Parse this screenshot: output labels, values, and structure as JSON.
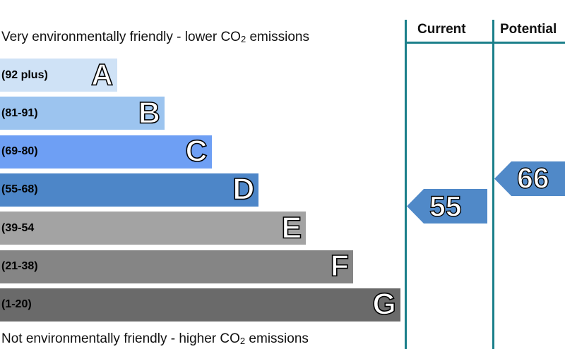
{
  "chart_data": {
    "type": "bar",
    "title": "",
    "top_caption": {
      "pre": "Very environmentally friendly - lower CO",
      "sub": "2",
      "post": " emissions"
    },
    "bottom_caption": {
      "pre": "Not environmentally friendly - higher CO",
      "sub": "2",
      "post": " emissions"
    },
    "bands": [
      {
        "range": "(92 plus)",
        "letter": "A",
        "color": "#cfe2f6"
      },
      {
        "range": "(81-91)",
        "letter": "B",
        "color": "#9cc4ef"
      },
      {
        "range": "(69-80)",
        "letter": "C",
        "color": "#6e9ff4"
      },
      {
        "range": "(55-68)",
        "letter": "D",
        "color": "#4d86c8"
      },
      {
        "range": "(39-54",
        "letter": "E",
        "color": "#a3a3a3"
      },
      {
        "range": "(21-38)",
        "letter": "F",
        "color": "#858585"
      },
      {
        "range": "(1-20)",
        "letter": "G",
        "color": "#6a6a6a"
      }
    ],
    "columns": [
      {
        "header": "Current",
        "value": 55,
        "color": "#5089c8"
      },
      {
        "header": "Potential",
        "value": 66,
        "color": "#5089c8"
      }
    ]
  }
}
